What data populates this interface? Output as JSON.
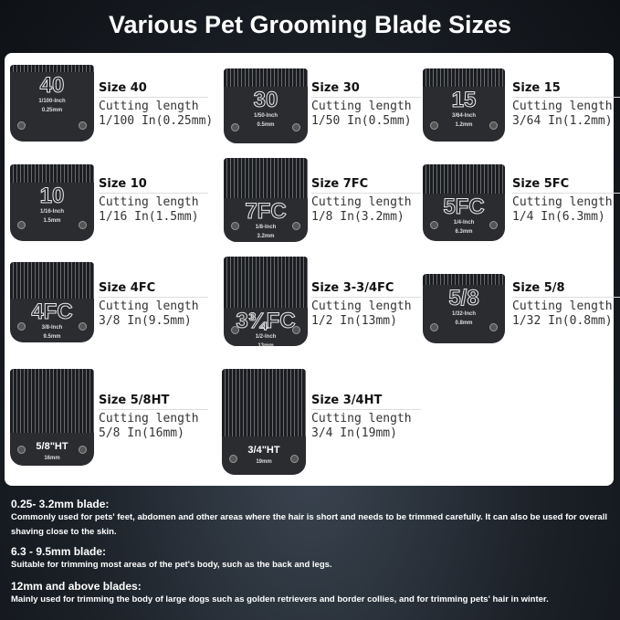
{
  "title": "Various Pet Grooming Blade Sizes",
  "blades": [
    {
      "size": "Size 40",
      "label": "Cutting length",
      "length": "1/100 In(0.25mm)",
      "stamp": "40",
      "inch": "1/100-Inch",
      "mm": "0.25mm"
    },
    {
      "size": "Size 30",
      "label": "Cutting length",
      "length": "1/50 In(0.5mm)",
      "stamp": "30",
      "inch": "1/50-Inch",
      "mm": "0.5mm"
    },
    {
      "size": "Size 15",
      "label": "Cutting length",
      "length": "3/64 In(1.2mm)",
      "stamp": "15",
      "inch": "3/64-Inch",
      "mm": "1.2mm"
    },
    {
      "size": "Size 10",
      "label": "Cutting length",
      "length": "1/16 In(1.5mm)",
      "stamp": "10",
      "inch": "1/16-Inch",
      "mm": "1.5mm"
    },
    {
      "size": "Size 7FC",
      "label": "Cutting length",
      "length": "1/8 In(3.2mm)",
      "stamp": "7FC",
      "inch": "1/8-Inch",
      "mm": "3.2mm"
    },
    {
      "size": "Size 5FC",
      "label": "Cutting length",
      "length": "1/4 In(6.3mm)",
      "stamp": "5FC",
      "inch": "1/4-Inch",
      "mm": "6.3mm"
    },
    {
      "size": "Size 4FC",
      "label": "Cutting length",
      "length": "3/8 In(9.5mm)",
      "stamp": "4FC",
      "inch": "3/8-Inch",
      "mm": "9.5mm"
    },
    {
      "size": "Size 3-3/4FC",
      "label": "Cutting length",
      "length": "1/2 In(13mm)",
      "stamp": "3¾FC",
      "inch": "1/2-Inch",
      "mm": "13mm"
    },
    {
      "size": "Size 5/8",
      "label": "Cutting length",
      "length": "1/32 In(0.8mm)",
      "stamp": "5/8",
      "inch": "1/32-Inch",
      "mm": "0.8mm"
    },
    {
      "size": "Size 5/8HT",
      "label": "Cutting length",
      "length": "5/8 In(16mm)",
      "stamp": "5/8\"HT",
      "inch": "",
      "mm": "16mm"
    },
    {
      "size": "Size 3/4HT",
      "label": "Cutting length",
      "length": "3/4 In(19mm)",
      "stamp": "3/4\"HT",
      "inch": "",
      "mm": "19mm"
    }
  ],
  "notes": [
    {
      "heading": "0.25- 3.2mm blade:",
      "body": "Commonly used for pets' feet, abdomen and other areas where the hair is short and needs to be trimmed carefully. It can also be used for overall shaving close to the skin."
    },
    {
      "heading": "6.3 - 9.5mm blade:",
      "body": "Suitable for trimming most areas of the pet's body, such as the back and legs."
    },
    {
      "heading": "12mm and above blades:",
      "body": "Mainly used for trimming the body of large dogs such as golden retrievers and border collies, and for trimming pets' hair in winter."
    }
  ]
}
